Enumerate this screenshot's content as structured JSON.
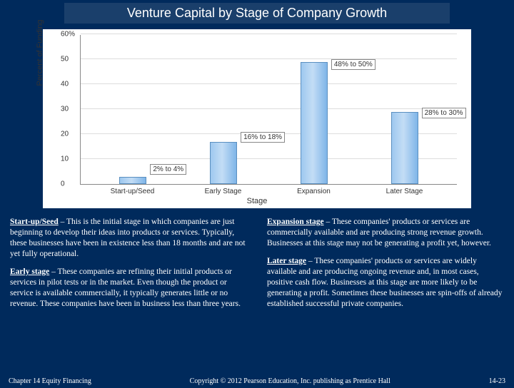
{
  "title": "Venture Capital by Stage of Company Growth",
  "chart": {
    "type": "bar",
    "ylabel": "Percent of Funding",
    "xlabel": "Stage",
    "ymax": 60,
    "ytick_step": 10,
    "yticks": [
      "0",
      "10",
      "20",
      "30",
      "40",
      "50",
      "60%"
    ],
    "categories": [
      "Start-up/Seed",
      "Early Stage",
      "Expansion",
      "Later Stage"
    ],
    "values": [
      3,
      17,
      49,
      29
    ],
    "bar_labels": [
      "2% to 4%",
      "16% to 18%",
      "48% to 50%",
      "28% to 30%"
    ],
    "bar_color": "#a8cef0",
    "border_color": "#5a8fc0",
    "grid_color": "#dddddd",
    "background_color": "#ffffff"
  },
  "stages": {
    "startup": {
      "name": "Start-up/Seed",
      "text": " – This is the initial stage in which companies are just beginning to develop their ideas into products or services.  Typically, these businesses have been in existence less than 18 months and are not yet fully operational."
    },
    "early": {
      "name": "Early stage",
      "text": " – These companies are refining their initial products or services in pilot tests or in the market.  Even though the product or service is available commercially, it typically generates little or no revenue.  These companies have been in business less than three years."
    },
    "expansion": {
      "name": "Expansion stage",
      "text": " – These companies' products or services are commercially available and are producing strong revenue growth.  Businesses at this stage may not be generating a profit yet, however."
    },
    "later": {
      "name": "Later stage",
      "text": " – These companies' products or services are widely available and are producing ongoing revenue and, in most cases, positive cash flow.  Businesses at this stage are more likely to be generating a profit.  Sometimes these businesses are spin-offs of already established successful private companies."
    }
  },
  "footer": {
    "left": "Chapter 14 Equity Financing",
    "center": "Copyright © 2012 Pearson Education, Inc. publishing as Prentice Hall",
    "right": "14-23"
  }
}
